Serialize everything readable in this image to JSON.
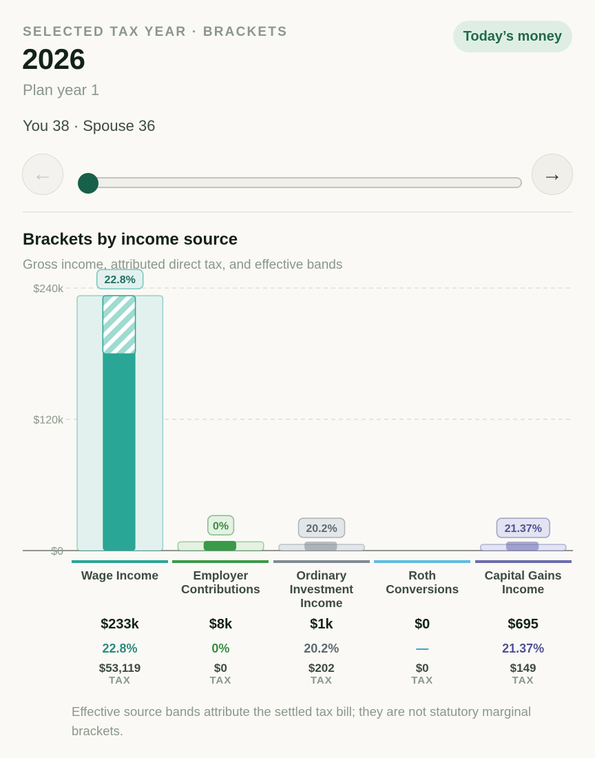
{
  "header": {
    "eyebrow": "SELECTED TAX YEAR · BRACKETS",
    "year": "2026",
    "plan_year": "Plan year 1",
    "ages": "You 38 · Spouse 36",
    "badge": "Today’s money"
  },
  "nav": {
    "prev_icon": "arrow-left-icon",
    "next_icon": "arrow-right-icon",
    "prev_glyph": "←",
    "next_glyph": "→",
    "slider_value": 0
  },
  "section": {
    "title": "Brackets by income source",
    "subtitle": "Gross income, attributed direct tax, and effective bands"
  },
  "chart_data": {
    "type": "bar",
    "ylim": [
      0,
      240000
    ],
    "ytick_labels": [
      "$240k",
      "$120k",
      "$0"
    ],
    "ytick_values": [
      240000,
      120000,
      0
    ],
    "grid": true,
    "categories": [
      "Wage Income",
      "Employer Contributions",
      "Ordinary Investment Income",
      "Roth Conversions",
      "Capital Gains Income"
    ],
    "series": [
      {
        "key": "gross",
        "values": [
          233000,
          8000,
          1000,
          0,
          695
        ]
      },
      {
        "key": "tax",
        "values": [
          53119,
          0,
          202,
          0,
          149
        ]
      }
    ],
    "rate_labels": [
      "22.8%",
      "0%",
      "20.2%",
      "",
      "21.37%"
    ],
    "colors": [
      "#2aa697",
      "#3a9a48",
      "#7f8b92",
      "#5cbde3",
      "#6a6cae"
    ],
    "light_colors": [
      "#e3f1ee",
      "#e4f1e3",
      "#e3e6e8",
      "#dcf0f8",
      "#e3e3f1"
    ]
  },
  "columns": [
    {
      "name": "Wage Income",
      "amount": "$233k",
      "rate": "22.8%",
      "tax": "$53,119",
      "tax_label": "TAX",
      "color": "#2aa697",
      "rate_color": "#2a8c7d"
    },
    {
      "name": "Employer Contributions",
      "amount": "$8k",
      "rate": "0%",
      "tax": "$0",
      "tax_label": "TAX",
      "color": "#3a9a48",
      "rate_color": "#3a8d43"
    },
    {
      "name": "Ordinary Investment Income",
      "amount": "$1k",
      "rate": "20.2%",
      "tax": "$202",
      "tax_label": "TAX",
      "color": "#7f8b92",
      "rate_color": "#5b6a72"
    },
    {
      "name": "Roth Conversions",
      "amount": "$0",
      "rate": "—",
      "tax": "$0",
      "tax_label": "TAX",
      "color": "#5cbde3",
      "rate_color": "#3a9fd0"
    },
    {
      "name": "Capital Gains Income",
      "amount": "$695",
      "rate": "21.37%",
      "tax": "$149",
      "tax_label": "TAX",
      "color": "#6a6cae",
      "rate_color": "#4f5197"
    }
  ],
  "footnote": "Effective source bands attribute the settled tax bill; they are not statutory marginal brackets."
}
